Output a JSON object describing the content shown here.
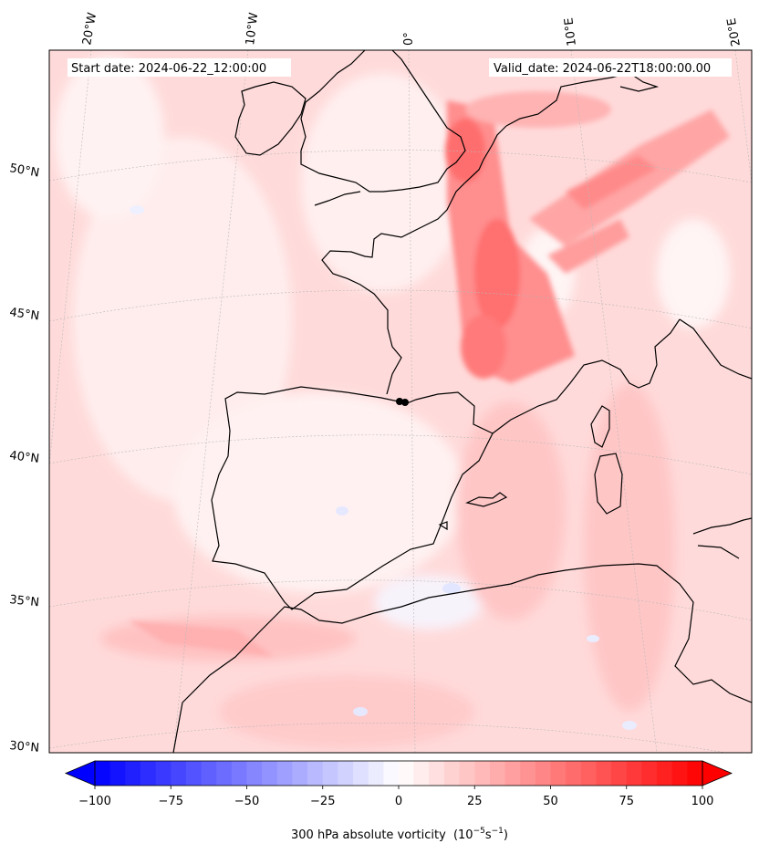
{
  "map": {
    "start_date_label": "Start date: 2024-06-22_12:00:00",
    "valid_date_label": "Valid_date: 2024-06-22T18:00:00.00",
    "longitude_labels": [
      "20°W",
      "10°W",
      "0°",
      "10°E",
      "20°E"
    ],
    "latitude_labels": [
      "50°N",
      "45°N",
      "40°N",
      "35°N",
      "30°N"
    ],
    "colormap": "bwr",
    "background_fill": "#ffdada"
  },
  "colorbar": {
    "ticks": [
      "−100",
      "−75",
      "−50",
      "−25",
      "0",
      "25",
      "50",
      "75",
      "100"
    ],
    "min": -100,
    "max": 100,
    "levels": 41,
    "label": "300 hPa absolute vorticity",
    "label_units": "(10",
    "label_exp1": "−5",
    "label_mid": "s",
    "label_exp2": "−1",
    "label_close": ")"
  }
}
